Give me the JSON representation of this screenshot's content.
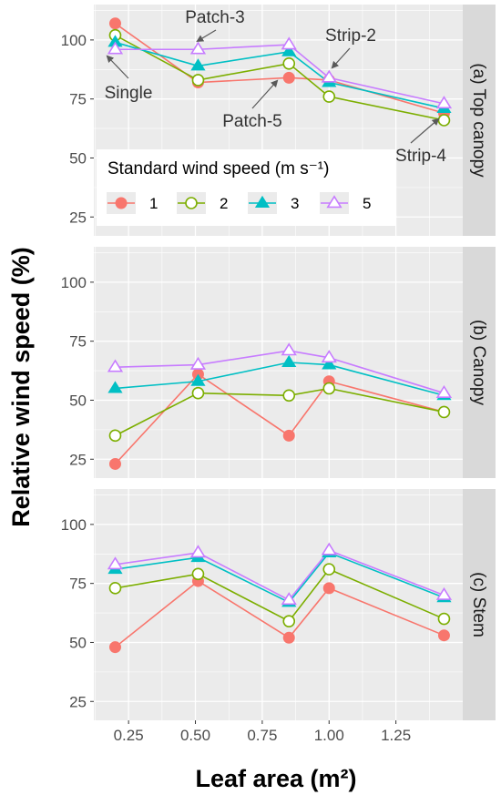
{
  "chart_data": {
    "type": "line",
    "xlabel": "Leaf area (m²)",
    "ylabel": "Relative wind speed (%)",
    "x": [
      0.2,
      0.51,
      0.85,
      1.0,
      1.43
    ],
    "xticks": [
      "0.25",
      "0.50",
      "0.75",
      "1.00",
      "1.25"
    ],
    "xtick_values": [
      0.25,
      0.5,
      0.75,
      1.0,
      1.25
    ],
    "xlim": [
      0.12,
      1.5
    ],
    "ylim": [
      17,
      115
    ],
    "yticks": [
      "25",
      "50",
      "75",
      "100"
    ],
    "ytick_values": [
      25,
      50,
      75,
      100
    ],
    "legend": {
      "title": "Standard wind speed (m s⁻¹)",
      "entries": [
        "1",
        "2",
        "3",
        "5"
      ],
      "placement": "inside top panel, lower-left"
    },
    "series_colors": {
      "1": "#F8766D",
      "2": "#7CAE00",
      "3": "#00BFC4",
      "5": "#C77CFF"
    },
    "series_markers": {
      "1": "filled-circle",
      "2": "open-circle",
      "3": "filled-triangle",
      "5": "open-triangle"
    },
    "panels": [
      {
        "label": "(a) Top canopy",
        "series": [
          {
            "name": "1",
            "values": [
              107,
              82,
              84,
              83,
              69
            ]
          },
          {
            "name": "2",
            "values": [
              102,
              83,
              90,
              76,
              66
            ]
          },
          {
            "name": "3",
            "values": [
              99,
              89,
              95,
              82,
              71
            ]
          },
          {
            "name": "5",
            "values": [
              96,
              96,
              98,
              84,
              73
            ]
          }
        ],
        "annotations": [
          {
            "text": "Patch-3"
          },
          {
            "text": "Strip-2"
          },
          {
            "text": "Single"
          },
          {
            "text": "Patch-5"
          },
          {
            "text": "Strip-4"
          }
        ]
      },
      {
        "label": "(b) Canopy",
        "series": [
          {
            "name": "1",
            "values": [
              23,
              61,
              35,
              58,
              45
            ]
          },
          {
            "name": "2",
            "values": [
              35,
              53,
              52,
              55,
              45
            ]
          },
          {
            "name": "3",
            "values": [
              55,
              58,
              66,
              65,
              52
            ]
          },
          {
            "name": "5",
            "values": [
              64,
              65,
              71,
              68,
              53
            ]
          }
        ],
        "annotations": []
      },
      {
        "label": "(c) Stem",
        "series": [
          {
            "name": "1",
            "values": [
              48,
              76,
              52,
              73,
              53
            ]
          },
          {
            "name": "2",
            "values": [
              73,
              79,
              59,
              81,
              60
            ]
          },
          {
            "name": "3",
            "values": [
              81,
              86,
              67,
              88,
              69
            ]
          },
          {
            "name": "5",
            "values": [
              83,
              88,
              68,
              89,
              70
            ]
          }
        ],
        "annotations": []
      }
    ]
  }
}
